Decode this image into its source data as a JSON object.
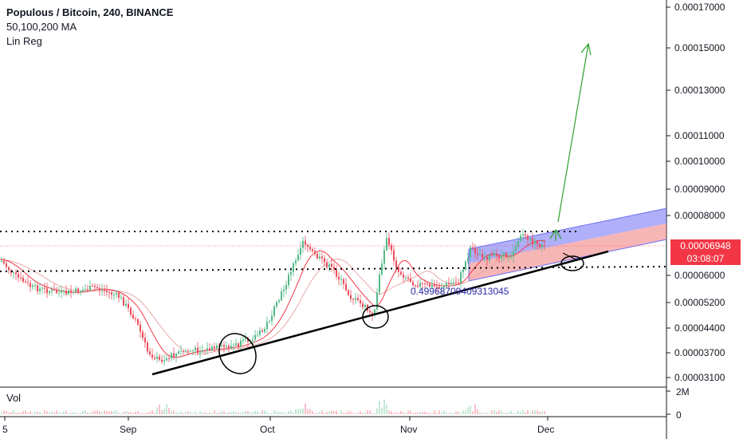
{
  "header": {
    "title": "Populous / Bitcoin, 240, BINANCE",
    "indicator_ma": "50,100,200 MA",
    "indicator_linreg": "Lin Reg"
  },
  "volume_pane": {
    "label": "Vol",
    "ticks": [
      "2M",
      "0"
    ]
  },
  "price_scale": {
    "ticks": [
      "0.00017000",
      "0.00015000",
      "0.00013000",
      "0.00011000",
      "0.00010000",
      "0.00009000",
      "0.00008000",
      "0.00006000",
      "0.00005200",
      "0.00004400",
      "0.00003700",
      "0.00003100"
    ]
  },
  "last_price": {
    "value": "0.00006948",
    "countdown": "03:08:07"
  },
  "time_axis": {
    "labels": [
      "5",
      "Sep",
      "Oct",
      "Nov",
      "Dec"
    ]
  },
  "annotations": {
    "linreg_value": "0.49968709409313045"
  },
  "colors": {
    "candle_up": "#53b987",
    "candle_down": "#eb4d5c",
    "ma_short": "#f23645",
    "ma_long": "#e8a9a9",
    "channel_upper": "#6e6ef5",
    "channel_lower": "#f07a7a",
    "arrow": "#2ca02c",
    "price_tag": "#f23645"
  },
  "chart_data": {
    "type": "candlestick",
    "title": "Populous / Bitcoin, 240, BINANCE",
    "scale": "log",
    "ylim": [
      2.9e-05,
      0.00018
    ],
    "x_labels": [
      "5",
      "Sep",
      "Oct",
      "Nov",
      "Dec"
    ],
    "approx_close_path": [
      {
        "x": "Aug 5",
        "y": 6.7e-05
      },
      {
        "x": "Aug 12",
        "y": 5.9e-05
      },
      {
        "x": "Aug 22",
        "y": 5.6e-05
      },
      {
        "x": "Aug 28",
        "y": 5.2e-05
      },
      {
        "x": "Sep 3",
        "y": 3.8e-05
      },
      {
        "x": "Sep 8",
        "y": 3.6e-05
      },
      {
        "x": "Sep 14",
        "y": 3.8e-05
      },
      {
        "x": "Sep 22",
        "y": 3.9e-05
      },
      {
        "x": "Sep 30",
        "y": 4.4e-05
      },
      {
        "x": "Oct 6",
        "y": 6e-05
      },
      {
        "x": "Oct 9",
        "y": 7.8e-05
      },
      {
        "x": "Oct 14",
        "y": 6.2e-05
      },
      {
        "x": "Oct 20",
        "y": 5.4e-05
      },
      {
        "x": "Oct 24",
        "y": 4.8e-05
      },
      {
        "x": "Oct 26",
        "y": 7.6e-05
      },
      {
        "x": "Oct 30",
        "y": 6e-05
      },
      {
        "x": "Nov 6",
        "y": 5.7e-05
      },
      {
        "x": "Nov 12",
        "y": 5.8e-05
      },
      {
        "x": "Nov 14",
        "y": 7.2e-05
      },
      {
        "x": "Nov 20",
        "y": 6.8e-05
      },
      {
        "x": "Nov 25",
        "y": 7.6e-05
      },
      {
        "x": "Nov 29",
        "y": 6.95e-05
      }
    ],
    "horizontal_levels": [
      7.7e-05,
      6.1e-05
    ],
    "last_price": 6.948e-05
  }
}
